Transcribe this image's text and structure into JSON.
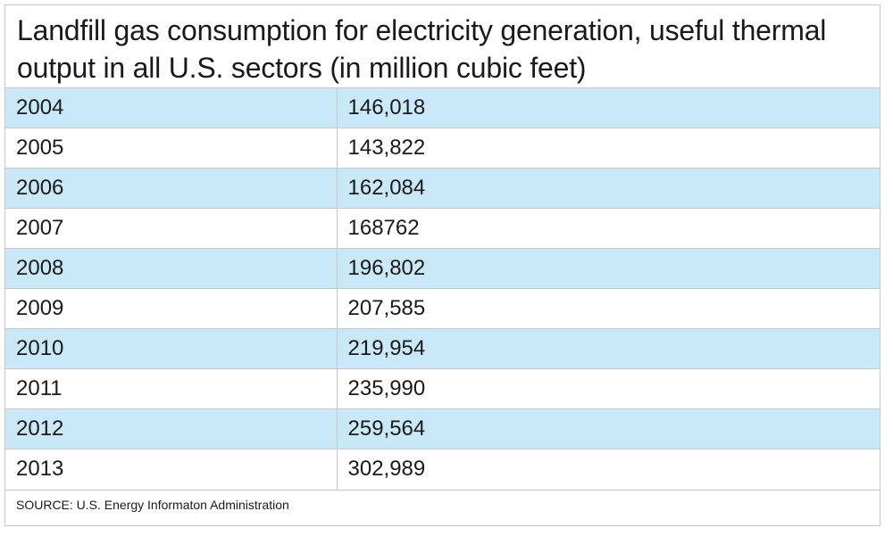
{
  "header": {
    "title": "Landfill gas consumption for electricity generation, useful thermal output in all U.S. sectors (in million cubic feet)"
  },
  "table": {
    "rows": [
      [
        "2004",
        "146,018"
      ],
      [
        "2005",
        "143,822"
      ],
      [
        "2006",
        "162,084"
      ],
      [
        "2007",
        "168762"
      ],
      [
        "2008",
        "196,802"
      ],
      [
        "2009",
        "207,585"
      ],
      [
        "2010",
        "219,954"
      ],
      [
        "2011",
        "235,990"
      ],
      [
        "2012",
        "259,564"
      ],
      [
        "2013",
        "302,989"
      ]
    ]
  },
  "footer": {
    "source": "SOURCE: U.S. Energy Informaton Administration"
  }
}
